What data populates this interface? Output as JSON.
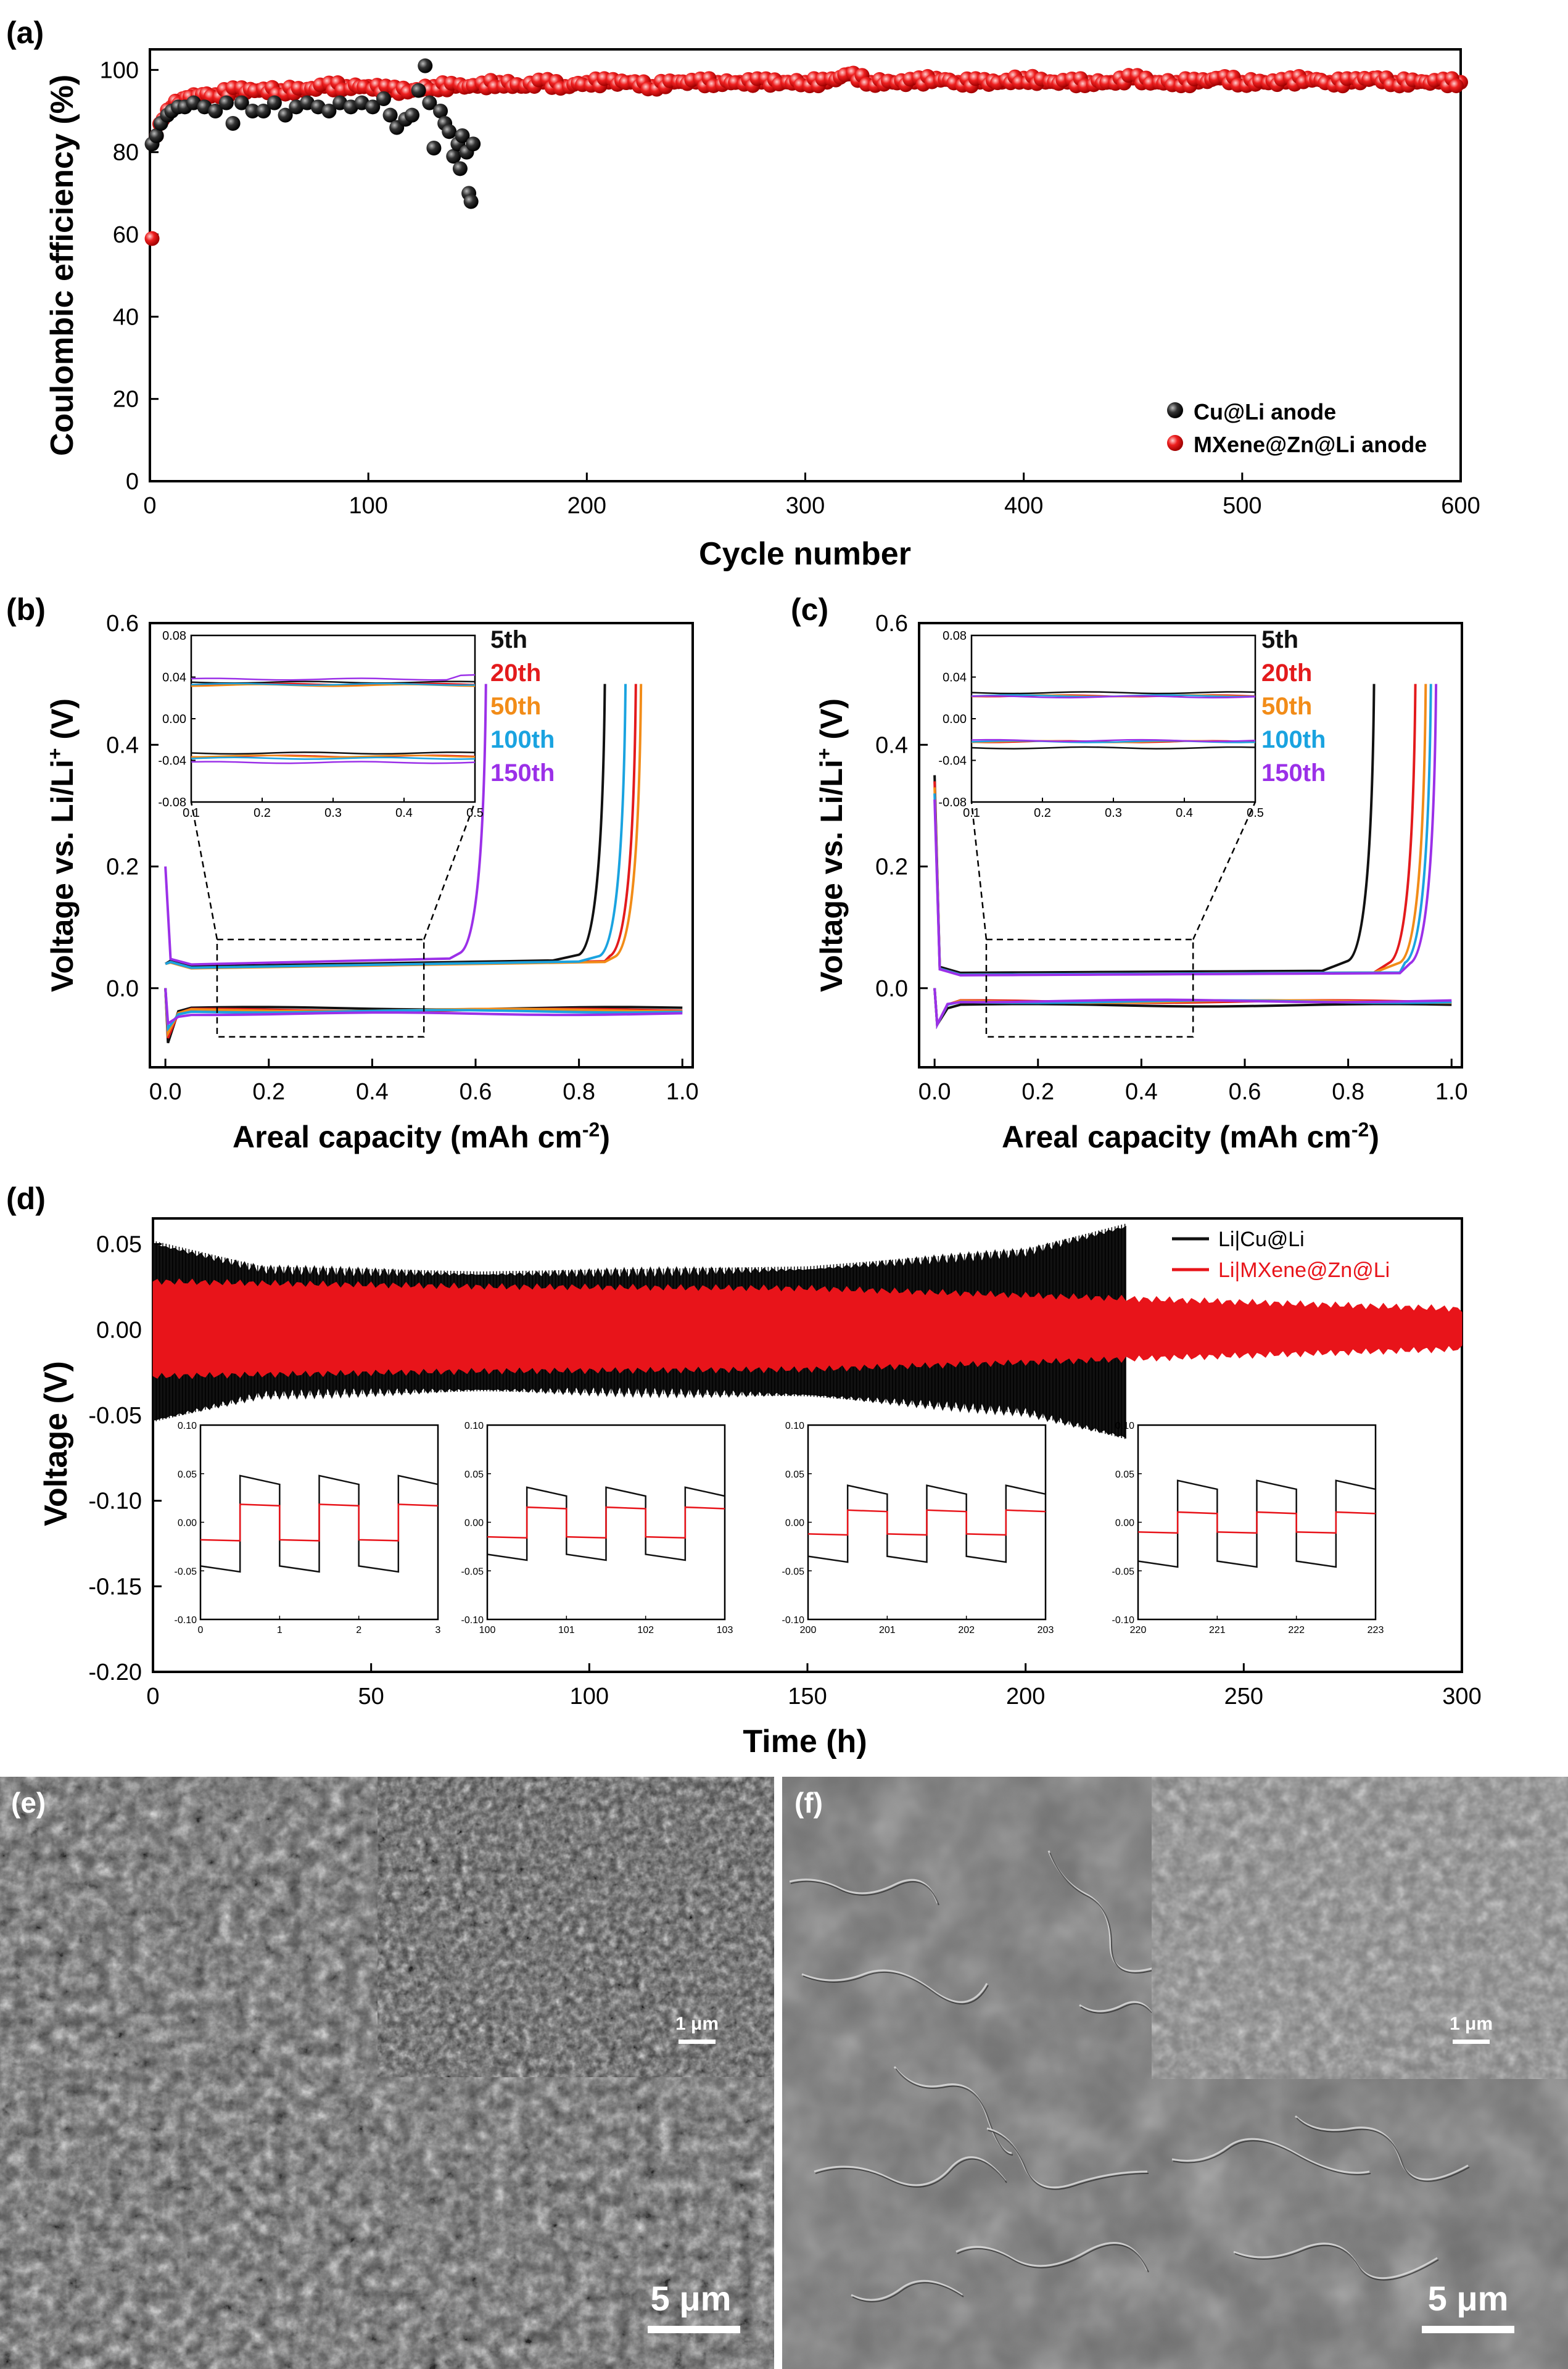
{
  "panels": {
    "a": {
      "label": "(a)",
      "chart_data": {
        "type": "scatter",
        "xlabel": "Cycle number",
        "ylabel": "Coulombic efficiency (%)",
        "xlim": [
          0,
          600
        ],
        "ylim": [
          0,
          105
        ],
        "xticks": [
          "0",
          "100",
          "200",
          "300",
          "400",
          "500",
          "600"
        ],
        "yticks": [
          "0",
          "20",
          "40",
          "60",
          "80",
          "100"
        ],
        "legend_position": "bottom-right",
        "series": [
          {
            "name": "Cu@Li anode",
            "color": "#111111",
            "points": [
              [
                1,
                82
              ],
              [
                3,
                84
              ],
              [
                5,
                87
              ],
              [
                8,
                89
              ],
              [
                10,
                90
              ],
              [
                13,
                91
              ],
              [
                16,
                91
              ],
              [
                20,
                92
              ],
              [
                25,
                91
              ],
              [
                30,
                90
              ],
              [
                35,
                92
              ],
              [
                38,
                87
              ],
              [
                42,
                92
              ],
              [
                47,
                90
              ],
              [
                52,
                90
              ],
              [
                57,
                92
              ],
              [
                62,
                89
              ],
              [
                67,
                91
              ],
              [
                72,
                92
              ],
              [
                77,
                91
              ],
              [
                82,
                90
              ],
              [
                87,
                92
              ],
              [
                92,
                91
              ],
              [
                97,
                92
              ],
              [
                102,
                91
              ],
              [
                107,
                93
              ],
              [
                110,
                89
              ],
              [
                113,
                86
              ],
              [
                117,
                88
              ],
              [
                120,
                89
              ],
              [
                123,
                95
              ],
              [
                126,
                101
              ],
              [
                128,
                92
              ],
              [
                130,
                81
              ],
              [
                133,
                90
              ],
              [
                135,
                87
              ],
              [
                137,
                85
              ],
              [
                139,
                79
              ],
              [
                141,
                82
              ],
              [
                142,
                76
              ],
              [
                143,
                84
              ],
              [
                145,
                80
              ],
              [
                146,
                70
              ],
              [
                147,
                68
              ],
              [
                148,
                82
              ]
            ]
          },
          {
            "name": "MXene@Zn@Li anode",
            "color": "#e8141a",
            "points": [
              [
                1,
                59
              ],
              [
                3,
                84
              ],
              [
                6,
                88
              ],
              [
                10,
                91
              ],
              [
                15,
                93
              ],
              [
                20,
                94
              ],
              [
                30,
                94
              ],
              [
                40,
                95
              ],
              [
                50,
                95
              ],
              [
                60,
                95
              ],
              [
                70,
                95
              ],
              [
                80,
                96
              ],
              [
                90,
                96
              ],
              [
                100,
                96
              ],
              [
                110,
                95
              ],
              [
                120,
                95
              ],
              [
                130,
                96
              ],
              [
                140,
                96
              ],
              [
                150,
                96
              ],
              [
                160,
                97
              ],
              [
                170,
                96
              ],
              [
                180,
                97
              ],
              [
                190,
                96
              ],
              [
                200,
                97
              ],
              [
                210,
                97
              ],
              [
                220,
                97
              ],
              [
                230,
                96
              ],
              [
                240,
                97
              ],
              [
                250,
                97
              ],
              [
                260,
                97
              ],
              [
                270,
                97
              ],
              [
                280,
                97
              ],
              [
                290,
                97
              ],
              [
                300,
                97
              ],
              [
                310,
                97
              ],
              [
                320,
                99
              ],
              [
                330,
                97
              ],
              [
                340,
                97
              ],
              [
                350,
                97
              ],
              [
                360,
                98
              ],
              [
                370,
                97
              ],
              [
                380,
                97
              ],
              [
                390,
                97
              ],
              [
                400,
                98
              ],
              [
                410,
                97
              ],
              [
                420,
                97
              ],
              [
                430,
                97
              ],
              [
                440,
                97
              ],
              [
                450,
                98
              ],
              [
                460,
                97
              ],
              [
                470,
                97
              ],
              [
                480,
                97
              ],
              [
                490,
                98
              ],
              [
                500,
                97
              ],
              [
                510,
                97
              ],
              [
                520,
                97
              ],
              [
                530,
                98
              ],
              [
                540,
                97
              ],
              [
                550,
                97
              ],
              [
                560,
                98
              ],
              [
                570,
                97
              ],
              [
                580,
                97
              ],
              [
                590,
                97
              ],
              [
                600,
                97
              ]
            ]
          }
        ]
      }
    },
    "b": {
      "label": "(b)",
      "chart_data": {
        "type": "line",
        "xlabel": "Areal capacity (mAh cm",
        "xlabel_sup": "-2",
        "xlabel_end": ")",
        "ylabel": "Voltage vs. Li/Li",
        "ylabel_sup": "+",
        "ylabel_end": " (V)",
        "xlim": [
          -0.03,
          1.02
        ],
        "ylim": [
          -0.13,
          0.6
        ],
        "xticks": [
          "0.0",
          "0.2",
          "0.4",
          "0.6",
          "0.8",
          "1.0"
        ],
        "yticks": [
          "0.0",
          "0.2",
          "0.4",
          "0.6"
        ],
        "legend_position": "top-right",
        "series": [
          {
            "name": "5th",
            "color": "#111111",
            "end_capacity": 0.85,
            "plateau": 0.035,
            "strip": -0.033
          },
          {
            "name": "20th",
            "color": "#e31a1c",
            "end_capacity": 0.91,
            "plateau": 0.033,
            "strip": -0.036
          },
          {
            "name": "50th",
            "color": "#f28c18",
            "end_capacity": 0.92,
            "plateau": 0.032,
            "strip": -0.036
          },
          {
            "name": "100th",
            "color": "#1aa3e0",
            "end_capacity": 0.89,
            "plateau": 0.033,
            "strip": -0.038
          },
          {
            "name": "150th",
            "color": "#9b30e8",
            "end_capacity": 0.62,
            "plateau": 0.038,
            "strip": -0.042
          }
        ],
        "zoom_box": {
          "x": [
            0.1,
            0.5
          ],
          "y": [
            -0.08,
            0.08
          ]
        },
        "inset": {
          "xlim": [
            0.1,
            0.5
          ],
          "ylim": [
            -0.08,
            0.08
          ],
          "xticks": [
            "0.1",
            "0.2",
            "0.3",
            "0.4",
            "0.5"
          ],
          "yticks": [
            "-0.08",
            "-0.04",
            "0.00",
            "0.04",
            "0.08"
          ]
        }
      }
    },
    "c": {
      "label": "(c)",
      "chart_data": {
        "type": "line",
        "xlabel": "Areal capacity (mAh cm",
        "xlabel_sup": "-2",
        "xlabel_end": ")",
        "ylabel": "Voltage vs. Li/Li",
        "ylabel_sup": "+",
        "ylabel_end": " (V)",
        "xlim": [
          -0.03,
          1.02
        ],
        "ylim": [
          -0.13,
          0.6
        ],
        "xticks": [
          "0.0",
          "0.2",
          "0.4",
          "0.6",
          "0.8",
          "1.0"
        ],
        "yticks": [
          "0.0",
          "0.2",
          "0.4",
          "0.6"
        ],
        "legend_position": "top-right",
        "series": [
          {
            "name": "5th",
            "color": "#111111",
            "end_capacity": 0.85,
            "plateau": 0.025,
            "strip": -0.028
          },
          {
            "name": "20th",
            "color": "#e31a1c",
            "end_capacity": 0.93,
            "plateau": 0.022,
            "strip": -0.022
          },
          {
            "name": "50th",
            "color": "#f28c18",
            "end_capacity": 0.95,
            "plateau": 0.022,
            "strip": -0.022
          },
          {
            "name": "100th",
            "color": "#1aa3e0",
            "end_capacity": 0.96,
            "plateau": 0.022,
            "strip": -0.022
          },
          {
            "name": "150th",
            "color": "#9b30e8",
            "end_capacity": 0.97,
            "plateau": 0.021,
            "strip": -0.021
          }
        ],
        "zoom_box": {
          "x": [
            0.1,
            0.5
          ],
          "y": [
            -0.08,
            0.08
          ]
        },
        "inset": {
          "xlim": [
            0.1,
            0.5
          ],
          "ylim": [
            -0.08,
            0.08
          ],
          "xticks": [
            "0.1",
            "0.2",
            "0.3",
            "0.4",
            "0.5"
          ],
          "yticks": [
            "-0.08",
            "-0.04",
            "0.00",
            "0.04",
            "0.08"
          ]
        }
      }
    },
    "d": {
      "label": "(d)",
      "chart_data": {
        "type": "line",
        "xlabel": "Time (h)",
        "ylabel": "Voltage (V)",
        "xlim": [
          0,
          300
        ],
        "ylim": [
          -0.2,
          0.065
        ],
        "xticks": [
          "0",
          "50",
          "100",
          "150",
          "200",
          "250",
          "300"
        ],
        "yticks": [
          "-0.20",
          "-0.15",
          "-0.10",
          "-0.05",
          "0.00",
          "0.05"
        ],
        "legend_position": "top-right",
        "series": [
          {
            "name": "Li|Cu@Li",
            "color": "#111111",
            "end_time": 223,
            "envelope": [
              [
                0,
                0.05
              ],
              [
                25,
                0.035
              ],
              [
                75,
                0.032
              ],
              [
                150,
                0.035
              ],
              [
                200,
                0.045
              ],
              [
                223,
                0.06
              ]
            ]
          },
          {
            "name": "Li|MXene@Zn@Li",
            "color": "#e8141a",
            "end_time": 300,
            "envelope": [
              [
                0,
                0.028
              ],
              [
                75,
                0.025
              ],
              [
                150,
                0.024
              ],
              [
                223,
                0.018
              ],
              [
                300,
                0.012
              ]
            ]
          }
        ],
        "insets": [
          {
            "xticks": [
              "0",
              "1",
              "2",
              "3"
            ],
            "cu_amplitude": 0.045,
            "mx_amplitude": 0.018
          },
          {
            "xticks": [
              "100",
              "101",
              "102",
              "103"
            ],
            "cu_amplitude": 0.033,
            "mx_amplitude": 0.015
          },
          {
            "xticks": [
              "200",
              "201",
              "202",
              "203"
            ],
            "cu_amplitude": 0.035,
            "mx_amplitude": 0.012
          },
          {
            "xticks": [
              "220",
              "221",
              "222",
              "223"
            ],
            "cu_amplitude": 0.04,
            "mx_amplitude": 0.01
          }
        ],
        "inset_yticks": [
          "0.10",
          "0.05",
          "0.00",
          "-0.05",
          "-0.10"
        ]
      }
    },
    "e": {
      "label": "(e)",
      "scale_bar": "5 μm",
      "inset_scale_bar": "1 μm"
    },
    "f": {
      "label": "(f)",
      "scale_bar": "5 μm",
      "inset_scale_bar": "1 μm"
    }
  }
}
